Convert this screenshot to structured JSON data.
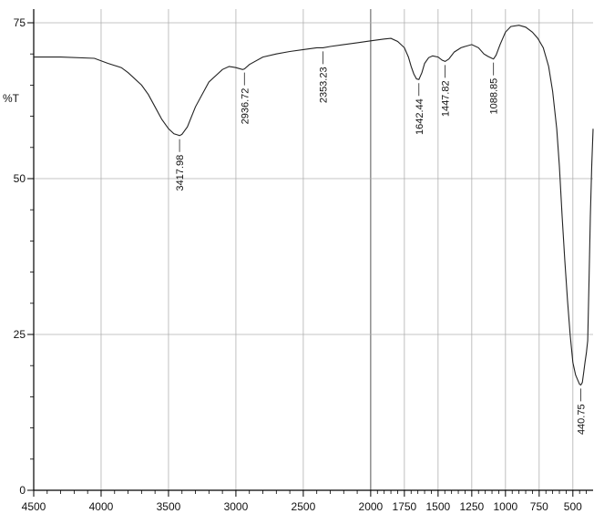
{
  "chart_data": {
    "type": "line",
    "ylabel": "%T",
    "xlim": [
      4500,
      350
    ],
    "ylim": [
      0,
      75
    ],
    "x_ticks": [
      4500,
      4000,
      3500,
      3000,
      2500,
      2000,
      1750,
      1500,
      1250,
      1000,
      750,
      500
    ],
    "y_ticks": [
      0,
      25,
      50,
      75
    ],
    "x_grid": [
      4000,
      3500,
      3000,
      2500,
      2000,
      1750,
      1500,
      1250,
      1000,
      750,
      500
    ],
    "y_grid": [
      25,
      50,
      75
    ],
    "grid": true,
    "series": [
      {
        "color": "#222222",
        "x": [
          4500,
          4300,
          4050,
          3950,
          3850,
          3800,
          3700,
          3650,
          3600,
          3550,
          3500,
          3460,
          3430,
          3417.98,
          3400,
          3360,
          3300,
          3200,
          3100,
          3050,
          3000,
          2950,
          2936.72,
          2900,
          2800,
          2700,
          2600,
          2500,
          2400,
          2353.23,
          2300,
          2200,
          2100,
          2000,
          1900,
          1850,
          1800,
          1750,
          1720,
          1700,
          1680,
          1660,
          1642.44,
          1620,
          1600,
          1570,
          1540,
          1500,
          1470,
          1447.82,
          1420,
          1380,
          1330,
          1300,
          1250,
          1200,
          1160,
          1130,
          1100,
          1088.85,
          1070,
          1040,
          1000,
          960,
          900,
          850,
          800,
          760,
          720,
          680,
          650,
          620,
          600,
          580,
          560,
          540,
          520,
          500,
          480,
          460,
          450,
          440.75,
          430,
          420,
          410,
          400,
          390,
          380,
          370,
          360,
          350
        ],
        "y": [
          69.5,
          69.5,
          69.3,
          68.5,
          67.8,
          67.0,
          65.0,
          63.5,
          61.5,
          59.5,
          58.0,
          57.2,
          57.0,
          56.9,
          57.1,
          58.3,
          61.5,
          65.5,
          67.5,
          68.0,
          67.8,
          67.5,
          67.6,
          68.3,
          69.5,
          70.0,
          70.4,
          70.7,
          71.0,
          71.0,
          71.2,
          71.5,
          71.8,
          72.1,
          72.4,
          72.5,
          72.0,
          71.0,
          69.5,
          68.0,
          66.8,
          66.0,
          65.9,
          67.0,
          68.5,
          69.4,
          69.7,
          69.5,
          69.0,
          68.8,
          69.2,
          70.3,
          71.0,
          71.2,
          71.5,
          71.0,
          70.0,
          69.6,
          69.3,
          69.2,
          69.8,
          71.5,
          73.5,
          74.4,
          74.6,
          74.3,
          73.5,
          72.5,
          71.0,
          68.0,
          64.0,
          58.0,
          52.0,
          44.0,
          37.0,
          30.5,
          25.0,
          20.5,
          18.5,
          17.5,
          17.0,
          16.9,
          17.3,
          18.8,
          20.5,
          22.0,
          24.0,
          34.0,
          44.0,
          52.0,
          58.0
        ]
      }
    ],
    "annotations": [
      {
        "x": 3417.98,
        "y": 56.9,
        "label": "3417.98"
      },
      {
        "x": 2936.72,
        "y": 67.6,
        "label": "2936.72"
      },
      {
        "x": 2353.23,
        "y": 71.0,
        "label": "2353.23"
      },
      {
        "x": 1642.44,
        "y": 65.9,
        "label": "1642.44"
      },
      {
        "x": 1447.82,
        "y": 68.8,
        "label": "1447.82"
      },
      {
        "x": 1088.85,
        "y": 69.2,
        "label": "1088.85"
      },
      {
        "x": 440.75,
        "y": 16.9,
        "label": "440.75"
      }
    ],
    "annotation_label_x_override": [
      {
        "label": "440.75",
        "label_above_peak": false
      }
    ]
  }
}
